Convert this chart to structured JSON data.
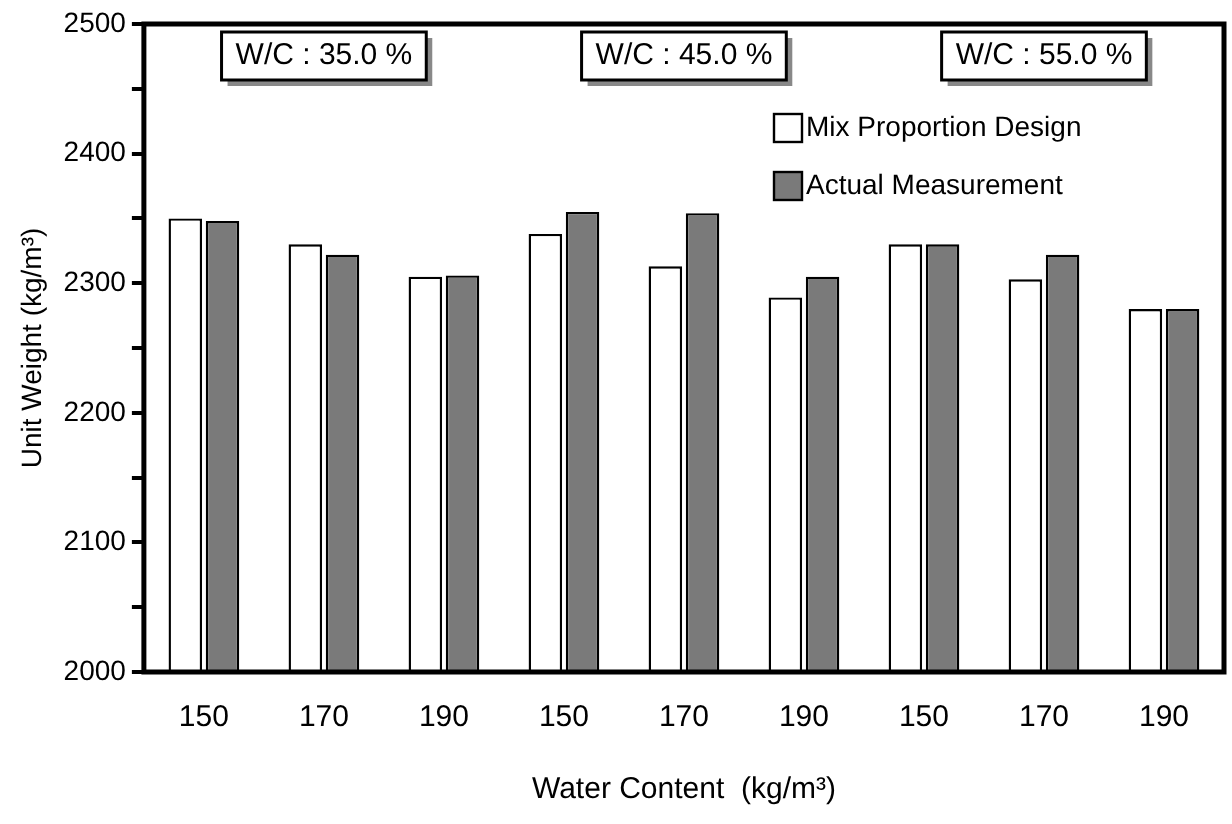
{
  "chart_data": {
    "type": "bar",
    "xlabel": "Water Content  (kg/m³)",
    "ylabel": "Unit Weight (kg/m³)",
    "categories": [
      "150",
      "170",
      "190",
      "150",
      "170",
      "190",
      "150",
      "170",
      "190"
    ],
    "series": [
      {
        "name": "Mix Proportion Design",
        "color": "#ffffff",
        "values": [
          2350,
          2330,
          2305,
          2338,
          2313,
          2289,
          2330,
          2303,
          2280
        ]
      },
      {
        "name": "Actual Measurement",
        "color": "#7a7a7a",
        "values": [
          2348,
          2322,
          2306,
          2355,
          2354,
          2305,
          2330,
          2322,
          2280
        ]
      }
    ],
    "ylim": [
      2000,
      2500
    ],
    "yticks": [
      2000,
      {
        "value": 2050,
        "label": null
      },
      2100,
      {
        "value": 2150,
        "label": null
      },
      2200,
      {
        "value": 2250,
        "label": null
      },
      2300,
      {
        "value": 2350,
        "label": null
      },
      2400,
      {
        "value": 2450,
        "label": null
      },
      2500
    ],
    "annotations": [
      "W/C : 35.0 %",
      "W/C : 45.0 %",
      "W/C : 55.0 %"
    ],
    "legend": "top right",
    "grid": false
  }
}
